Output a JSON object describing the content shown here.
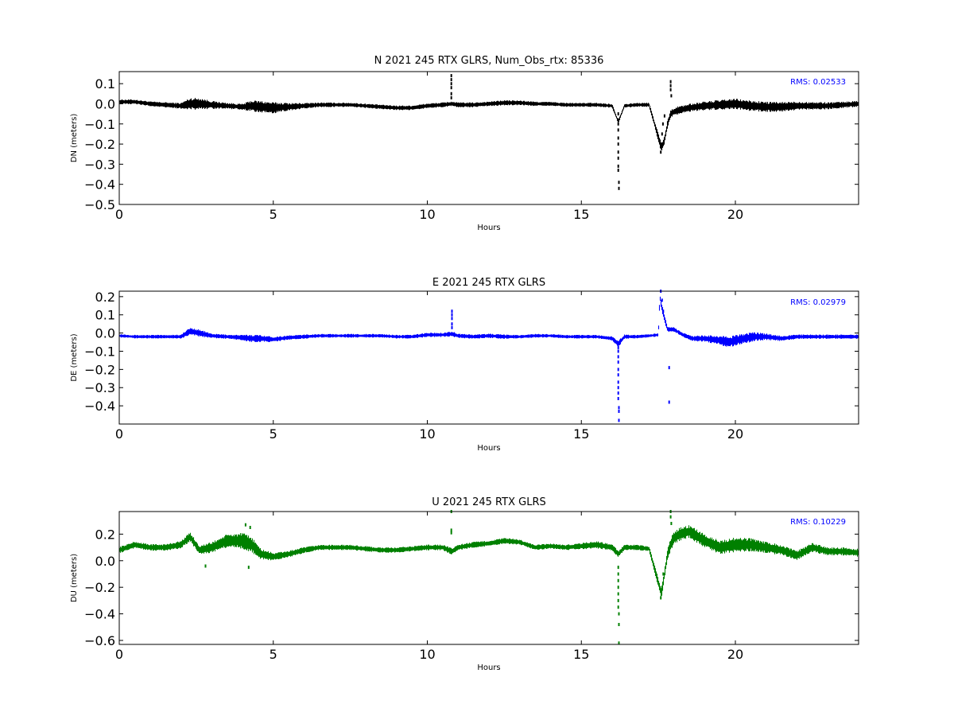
{
  "chart_data": [
    {
      "type": "scatter",
      "title": "N 2021 245 RTX  GLRS, Num_Obs_rtx: 85336",
      "xlabel": "Hours",
      "ylabel": "DN (meters)",
      "xlim": [
        0,
        24
      ],
      "ylim": [
        -0.5,
        0.16
      ],
      "xticks": [
        "0",
        "5",
        "10",
        "15",
        "20"
      ],
      "yticks": [
        "0.1",
        "0.0",
        "−0.1",
        "−0.2",
        "−0.3",
        "−0.4",
        "−0.5"
      ],
      "grid": false,
      "color": "#000000",
      "rms_label": "RMS:  0.02533",
      "rms_color": "#0000ff",
      "x": [
        0,
        0.5,
        1,
        1.5,
        2,
        2.3,
        2.6,
        3,
        3.5,
        4,
        4.3,
        4.6,
        5,
        5.5,
        6,
        6.5,
        7,
        7.5,
        8,
        8.5,
        9,
        9.5,
        10,
        10.5,
        10.8,
        11,
        11.5,
        12,
        12.5,
        13,
        13.5,
        14,
        14.5,
        15,
        15.5,
        16,
        16.2,
        16.4,
        16.8,
        17.2,
        17.6,
        17.7,
        17.8,
        17.9,
        18,
        18.2,
        18.5,
        19,
        19.5,
        20,
        20.5,
        21,
        21.5,
        22,
        22.5,
        23,
        23.5,
        24
      ],
      "y": [
        0.01,
        0.01,
        0.0,
        -0.005,
        -0.01,
        0.0,
        0.0,
        -0.005,
        -0.01,
        -0.015,
        -0.01,
        -0.015,
        -0.02,
        -0.015,
        -0.01,
        -0.005,
        -0.005,
        -0.005,
        -0.01,
        -0.015,
        -0.02,
        -0.02,
        -0.01,
        -0.005,
        0.0,
        -0.005,
        -0.005,
        0.0,
        0.005,
        0.005,
        0.0,
        0.0,
        -0.005,
        -0.005,
        -0.005,
        -0.01,
        -0.09,
        -0.01,
        -0.005,
        -0.005,
        -0.22,
        -0.18,
        -0.1,
        -0.05,
        -0.04,
        -0.03,
        -0.02,
        -0.01,
        -0.005,
        0.0,
        -0.01,
        -0.015,
        -0.015,
        -0.01,
        -0.01,
        -0.01,
        -0.005,
        0.0
      ],
      "noise": [
        0.012,
        0.012,
        0.012,
        0.013,
        0.015,
        0.03,
        0.03,
        0.02,
        0.015,
        0.015,
        0.028,
        0.03,
        0.028,
        0.02,
        0.014,
        0.012,
        0.011,
        0.011,
        0.011,
        0.011,
        0.012,
        0.012,
        0.012,
        0.012,
        0.012,
        0.012,
        0.012,
        0.012,
        0.013,
        0.012,
        0.011,
        0.01,
        0.01,
        0.01,
        0.01,
        0.01,
        0.01,
        0.01,
        0.01,
        0.01,
        0.025,
        0.02,
        0.02,
        0.02,
        0.02,
        0.02,
        0.02,
        0.022,
        0.024,
        0.026,
        0.026,
        0.026,
        0.024,
        0.022,
        0.02,
        0.018,
        0.016,
        0.015
      ],
      "outliers": [
        {
          "x": 10.78,
          "y": 0.14
        },
        {
          "x": 10.78,
          "y": 0.12
        },
        {
          "x": 10.78,
          "y": 0.1
        },
        {
          "x": 10.78,
          "y": 0.08
        },
        {
          "x": 10.78,
          "y": 0.05
        },
        {
          "x": 10.78,
          "y": 0.03
        },
        {
          "x": 16.2,
          "y": -0.05
        },
        {
          "x": 16.2,
          "y": -0.08
        },
        {
          "x": 16.2,
          "y": -0.1
        },
        {
          "x": 16.2,
          "y": -0.13
        },
        {
          "x": 16.2,
          "y": -0.17
        },
        {
          "x": 16.2,
          "y": -0.2
        },
        {
          "x": 16.2,
          "y": -0.24
        },
        {
          "x": 16.2,
          "y": -0.27
        },
        {
          "x": 16.2,
          "y": -0.31
        },
        {
          "x": 16.2,
          "y": -0.33
        },
        {
          "x": 16.22,
          "y": -0.39
        },
        {
          "x": 16.22,
          "y": -0.42
        },
        {
          "x": 17.58,
          "y": -0.24
        },
        {
          "x": 17.6,
          "y": -0.2
        },
        {
          "x": 17.62,
          "y": -0.15
        },
        {
          "x": 17.65,
          "y": -0.1
        },
        {
          "x": 17.7,
          "y": -0.06
        },
        {
          "x": 17.9,
          "y": 0.11
        },
        {
          "x": 17.9,
          "y": 0.09
        },
        {
          "x": 17.9,
          "y": 0.07
        },
        {
          "x": 17.92,
          "y": 0.04
        }
      ]
    },
    {
      "type": "scatter",
      "title": "E 2021 245 RTX  GLRS",
      "xlabel": "Hours",
      "ylabel": "DE (meters)",
      "xlim": [
        0,
        24
      ],
      "ylim": [
        -0.5,
        0.23
      ],
      "xticks": [
        "0",
        "5",
        "10",
        "15",
        "20"
      ],
      "yticks": [
        "0.2",
        "0.1",
        "0.0",
        "−0.1",
        "−0.2",
        "−0.3",
        "−0.4"
      ],
      "grid": false,
      "color": "#0000ff",
      "rms_label": "RMS:  0.02979",
      "rms_color": "#0000ff",
      "x": [
        0,
        0.5,
        1,
        1.5,
        2,
        2.3,
        2.6,
        3,
        3.5,
        4,
        4.3,
        4.6,
        5,
        5.5,
        6,
        6.5,
        7,
        7.5,
        8,
        8.5,
        9,
        9.5,
        10,
        10.5,
        10.8,
        11,
        11.5,
        12,
        12.5,
        13,
        13.5,
        14,
        14.5,
        15,
        15.5,
        16,
        16.2,
        16.4,
        16.8,
        17.2,
        17.5,
        17.55,
        17.6,
        17.7,
        17.8,
        18,
        18.3,
        18.6,
        19,
        19.5,
        19.8,
        20,
        20.3,
        20.6,
        21,
        21.5,
        22,
        22.5,
        23,
        23.5,
        24
      ],
      "y": [
        -0.015,
        -0.02,
        -0.02,
        -0.02,
        -0.02,
        0.01,
        0.0,
        -0.015,
        -0.02,
        -0.025,
        -0.03,
        -0.03,
        -0.035,
        -0.025,
        -0.02,
        -0.015,
        -0.015,
        -0.015,
        -0.015,
        -0.015,
        -0.02,
        -0.02,
        -0.01,
        -0.01,
        -0.005,
        -0.015,
        -0.02,
        -0.015,
        -0.02,
        -0.02,
        -0.015,
        -0.015,
        -0.02,
        -0.02,
        -0.02,
        -0.03,
        -0.06,
        -0.02,
        -0.02,
        -0.015,
        -0.01,
        0.2,
        0.15,
        0.08,
        0.02,
        0.02,
        -0.01,
        -0.03,
        -0.03,
        -0.04,
        -0.05,
        -0.04,
        -0.03,
        -0.02,
        -0.02,
        -0.03,
        -0.02,
        -0.02,
        -0.02,
        -0.02,
        -0.02
      ],
      "noise": [
        0.01,
        0.01,
        0.01,
        0.01,
        0.012,
        0.02,
        0.02,
        0.012,
        0.012,
        0.015,
        0.022,
        0.02,
        0.015,
        0.012,
        0.012,
        0.01,
        0.01,
        0.01,
        0.01,
        0.01,
        0.01,
        0.01,
        0.012,
        0.012,
        0.015,
        0.012,
        0.012,
        0.012,
        0.012,
        0.01,
        0.01,
        0.01,
        0.01,
        0.01,
        0.01,
        0.012,
        0.02,
        0.012,
        0.01,
        0.01,
        0.008,
        0.02,
        0.02,
        0.02,
        0.015,
        0.012,
        0.012,
        0.014,
        0.018,
        0.025,
        0.03,
        0.03,
        0.028,
        0.025,
        0.018,
        0.015,
        0.012,
        0.012,
        0.012,
        0.012,
        0.012
      ],
      "outliers": [
        {
          "x": 10.8,
          "y": 0.12
        },
        {
          "x": 10.8,
          "y": 0.1
        },
        {
          "x": 10.8,
          "y": 0.08
        },
        {
          "x": 10.8,
          "y": 0.05
        },
        {
          "x": 10.8,
          "y": 0.03
        },
        {
          "x": 16.2,
          "y": -0.08
        },
        {
          "x": 16.2,
          "y": -0.1
        },
        {
          "x": 16.2,
          "y": -0.13
        },
        {
          "x": 16.2,
          "y": -0.16
        },
        {
          "x": 16.2,
          "y": -0.2
        },
        {
          "x": 16.2,
          "y": -0.23
        },
        {
          "x": 16.2,
          "y": -0.27
        },
        {
          "x": 16.2,
          "y": -0.3
        },
        {
          "x": 16.2,
          "y": -0.33
        },
        {
          "x": 16.2,
          "y": -0.36
        },
        {
          "x": 16.22,
          "y": -0.41
        },
        {
          "x": 16.22,
          "y": -0.43
        },
        {
          "x": 16.22,
          "y": -0.48
        },
        {
          "x": 17.58,
          "y": 0.23
        },
        {
          "x": 17.62,
          "y": 0.18
        },
        {
          "x": 17.66,
          "y": 0.12
        },
        {
          "x": 17.85,
          "y": -0.19
        },
        {
          "x": 17.85,
          "y": -0.38
        }
      ]
    },
    {
      "type": "scatter",
      "title": "U 2021 245 RTX  GLRS",
      "xlabel": "Hours",
      "ylabel": "DU (meters)",
      "xlim": [
        0,
        24
      ],
      "ylim": [
        -0.63,
        0.37
      ],
      "xticks": [
        "0",
        "5",
        "10",
        "15",
        "20"
      ],
      "yticks": [
        "0.2",
        "0.0",
        "−0.2",
        "−0.4",
        "−0.6"
      ],
      "grid": false,
      "color": "#008000",
      "rms_label": "RMS:  0.10229",
      "rms_color": "#0000ff",
      "x": [
        0,
        0.5,
        1,
        1.5,
        2,
        2.3,
        2.6,
        3,
        3.5,
        4,
        4.3,
        4.6,
        5,
        5.5,
        6,
        6.5,
        7,
        7.5,
        8,
        8.5,
        9,
        9.5,
        10,
        10.5,
        10.8,
        11,
        11.5,
        12,
        12.5,
        13,
        13.5,
        14,
        14.5,
        15,
        15.5,
        16,
        16.2,
        16.4,
        16.8,
        17.2,
        17.6,
        17.7,
        17.8,
        17.9,
        18,
        18.2,
        18.5,
        19,
        19.5,
        20,
        20.5,
        21,
        21.5,
        22,
        22.5,
        23,
        23.5,
        24
      ],
      "y": [
        0.08,
        0.12,
        0.1,
        0.1,
        0.12,
        0.18,
        0.08,
        0.1,
        0.15,
        0.15,
        0.12,
        0.05,
        0.03,
        0.05,
        0.08,
        0.1,
        0.1,
        0.1,
        0.09,
        0.08,
        0.08,
        0.09,
        0.1,
        0.1,
        0.07,
        0.1,
        0.12,
        0.13,
        0.15,
        0.14,
        0.1,
        0.11,
        0.1,
        0.11,
        0.12,
        0.1,
        0.05,
        0.1,
        0.1,
        0.09,
        -0.25,
        -0.1,
        0.05,
        0.12,
        0.17,
        0.2,
        0.22,
        0.15,
        0.1,
        0.12,
        0.12,
        0.1,
        0.08,
        0.04,
        0.1,
        0.07,
        0.07,
        0.06
      ],
      "noise": [
        0.025,
        0.025,
        0.025,
        0.025,
        0.03,
        0.035,
        0.035,
        0.04,
        0.05,
        0.06,
        0.06,
        0.04,
        0.03,
        0.025,
        0.022,
        0.02,
        0.02,
        0.02,
        0.02,
        0.02,
        0.02,
        0.02,
        0.022,
        0.022,
        0.025,
        0.022,
        0.022,
        0.022,
        0.022,
        0.02,
        0.02,
        0.02,
        0.02,
        0.025,
        0.028,
        0.025,
        0.025,
        0.02,
        0.02,
        0.02,
        0.04,
        0.04,
        0.04,
        0.05,
        0.05,
        0.05,
        0.05,
        0.05,
        0.055,
        0.055,
        0.05,
        0.045,
        0.04,
        0.035,
        0.035,
        0.03,
        0.03,
        0.03
      ],
      "outliers": [
        {
          "x": 10.78,
          "y": 0.37
        },
        {
          "x": 10.78,
          "y": 0.23
        },
        {
          "x": 10.78,
          "y": 0.21
        },
        {
          "x": 16.2,
          "y": -0.05
        },
        {
          "x": 16.2,
          "y": -0.1
        },
        {
          "x": 16.2,
          "y": -0.15
        },
        {
          "x": 16.2,
          "y": -0.2
        },
        {
          "x": 16.2,
          "y": -0.25
        },
        {
          "x": 16.2,
          "y": -0.3
        },
        {
          "x": 16.2,
          "y": -0.35
        },
        {
          "x": 16.22,
          "y": -0.4
        },
        {
          "x": 16.22,
          "y": -0.48
        },
        {
          "x": 16.22,
          "y": -0.62
        },
        {
          "x": 17.58,
          "y": -0.28
        },
        {
          "x": 17.62,
          "y": -0.2
        },
        {
          "x": 17.66,
          "y": -0.1
        },
        {
          "x": 17.9,
          "y": 0.37
        },
        {
          "x": 17.9,
          "y": 0.33
        },
        {
          "x": 17.92,
          "y": 0.28
        },
        {
          "x": 4.1,
          "y": 0.27
        },
        {
          "x": 4.25,
          "y": 0.25
        },
        {
          "x": 2.8,
          "y": -0.04
        },
        {
          "x": 4.2,
          "y": -0.05
        }
      ]
    }
  ]
}
